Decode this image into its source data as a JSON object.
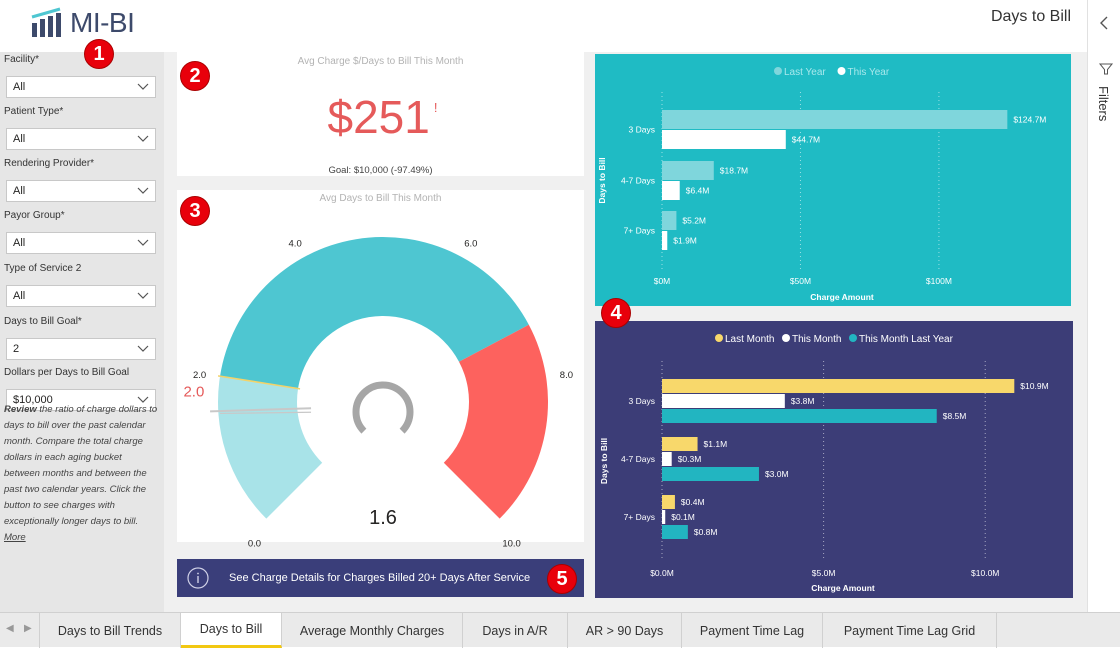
{
  "header": {
    "logo_text": "MI-BI",
    "page_title": "Days to Bill"
  },
  "badges": [
    "1",
    "2",
    "3",
    "4",
    "5"
  ],
  "slicers": [
    {
      "label": "Facility*",
      "value": "All"
    },
    {
      "label": "Patient Type*",
      "value": "All"
    },
    {
      "label": "Rendering Provider*",
      "value": "All"
    },
    {
      "label": "Payor Group*",
      "value": "All"
    },
    {
      "label": "Type of Service 2",
      "value": "All"
    },
    {
      "label": "Days to Bill Goal*",
      "value": "2"
    },
    {
      "label": "Dollars per Days to Bill Goal",
      "value": "$10,000"
    }
  ],
  "description": {
    "bold": "Review",
    "text": " the ratio of charge dollars to days to bill over the past calendar month. Compare the total charge dollars in each aging bucket between months and between the past two calendar years. Click the button to see charges with exceptionally longer days to bill. ",
    "link": "More"
  },
  "kpi": {
    "title": "Avg Charge $/Days to Bill This Month",
    "value": "$251",
    "indicator": "!",
    "goal": "Goal: $10,000 (-97.49%)"
  },
  "gauge": {
    "title": "Avg Days to Bill This Month",
    "value_label": "1.6",
    "target_label": "2.0",
    "value": 1.6,
    "target": 2.0,
    "min": 0,
    "max": 10,
    "bands": [
      {
        "from": 0,
        "to": 2,
        "color": "#a8e3e8"
      },
      {
        "from": 2,
        "to": 7.3,
        "color": "#4ec6d1"
      },
      {
        "from": 7.3,
        "to": 10,
        "color": "#fd625e"
      }
    ],
    "ticks": [
      {
        "value": 0,
        "label": "0.0"
      },
      {
        "value": 2,
        "label": "2.0"
      },
      {
        "value": 4,
        "label": "4.0"
      },
      {
        "value": 6,
        "label": "6.0"
      },
      {
        "value": 8,
        "label": "8.0"
      },
      {
        "value": 10,
        "label": "10.0"
      }
    ]
  },
  "button": {
    "label": "See Charge Details for Charges Billed 20+ Days After Service",
    "icon": "info-icon"
  },
  "chart_data": [
    {
      "type": "bar",
      "orientation": "horizontal",
      "background": "#1fbbc4",
      "xlabel": "Charge Amount",
      "ylabel": "Days to Bill",
      "categories": [
        "3 Days",
        "4-7 Days",
        "7+ Days"
      ],
      "xlim": [
        0,
        130
      ],
      "ticks": [
        {
          "value": 0,
          "label": "$0M"
        },
        {
          "value": 50,
          "label": "$50M"
        },
        {
          "value": 100,
          "label": "$100M"
        }
      ],
      "legend_position": "top-center",
      "series": [
        {
          "name": "Last Year",
          "color": "#7fd6dc",
          "values": [
            124.7,
            18.7,
            5.2
          ],
          "labels": [
            "$124.7M",
            "$18.7M",
            "$5.2M"
          ]
        },
        {
          "name": "This Year",
          "color": "#ffffff",
          "values": [
            44.7,
            6.4,
            1.9
          ],
          "labels": [
            "$44.7M",
            "$6.4M",
            "$1.9M"
          ]
        }
      ]
    },
    {
      "type": "bar",
      "orientation": "horizontal",
      "background": "#3c3d77",
      "xlabel": "Charge Amount",
      "ylabel": "Days to Bill",
      "categories": [
        "3 Days",
        "4-7 Days",
        "7+ Days"
      ],
      "xlim": [
        0,
        11.2
      ],
      "ticks": [
        {
          "value": 0,
          "label": "$0.0M"
        },
        {
          "value": 5,
          "label": "$5.0M"
        },
        {
          "value": 10,
          "label": "$10.0M"
        }
      ],
      "legend_position": "top-center",
      "series": [
        {
          "name": "Last Month",
          "color": "#f8d86b",
          "values": [
            10.9,
            1.1,
            0.4
          ],
          "labels": [
            "$10.9M",
            "$1.1M",
            "$0.4M"
          ]
        },
        {
          "name": "This Month",
          "color": "#ffffff",
          "values": [
            3.8,
            0.3,
            0.1
          ],
          "labels": [
            "$3.8M",
            "$0.3M",
            "$0.1M"
          ]
        },
        {
          "name": "This Month Last Year",
          "color": "#22b5c1",
          "values": [
            8.5,
            3.0,
            0.8
          ],
          "labels": [
            "$8.5M",
            "$3.0M",
            "$0.8M"
          ]
        }
      ]
    }
  ],
  "filters_pane": {
    "label": "Filters"
  },
  "tabs": [
    {
      "label": "Days to Bill Trends",
      "active": false
    },
    {
      "label": "Days to Bill",
      "active": true
    },
    {
      "label": "Average Monthly Charges",
      "active": false
    },
    {
      "label": "Days in A/R",
      "active": false
    },
    {
      "label": "AR > 90 Days",
      "active": false
    },
    {
      "label": "Payment Time Lag",
      "active": false
    },
    {
      "label": "Payment Time Lag Grid",
      "active": false
    }
  ]
}
